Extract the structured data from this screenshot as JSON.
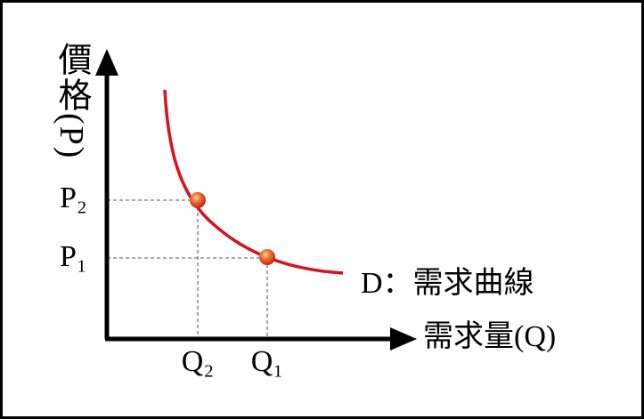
{
  "diagram": {
    "y_axis_label": "價格(P)",
    "x_axis_label": "需求量(Q)",
    "curve_label": "D：需求曲線",
    "y_labels": [
      "P₂",
      "P₁"
    ],
    "x_labels": [
      "Q₂",
      "Q₁"
    ]
  }
}
